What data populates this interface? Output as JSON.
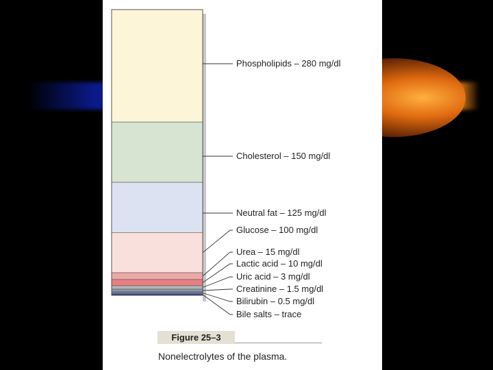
{
  "chart_data": {
    "type": "bar",
    "orientation": "vertical-stacked",
    "unit": "mg/dl",
    "segments": [
      {
        "label": "Phospholipids – 280 mg/dl",
        "value": 280,
        "color": "#fcf5d8"
      },
      {
        "label": "Cholesterol – 150 mg/dl",
        "value": 150,
        "color": "#d7e4d2"
      },
      {
        "label": "Neutral fat – 125 mg/dl",
        "value": 125,
        "color": "#dde2f2"
      },
      {
        "label": "Glucose – 100 mg/dl",
        "value": 100,
        "color": "#fae0dc"
      },
      {
        "label": "Urea – 15 mg/dl",
        "value": 15,
        "color": "#eca8a6"
      },
      {
        "label": "Lactic acid – 10 mg/dl",
        "value": 10,
        "color": "#e87f80"
      },
      {
        "label": "Uric acid – 3 mg/dl",
        "value": 3,
        "color": "#b4b4bc"
      },
      {
        "label": "Creatinine – 1.5 mg/dl",
        "value": 1.5,
        "color": "#8a98a4"
      },
      {
        "label": "Bilirubin – 0.5 mg/dl",
        "value": 0.5,
        "color": "#6a78a8"
      },
      {
        "label": "Bile salts – trace",
        "value": 0,
        "color": "#40407a"
      }
    ]
  },
  "figure": {
    "title": "Figure 25–3",
    "caption": "Nonelectrolytes of the plasma."
  }
}
